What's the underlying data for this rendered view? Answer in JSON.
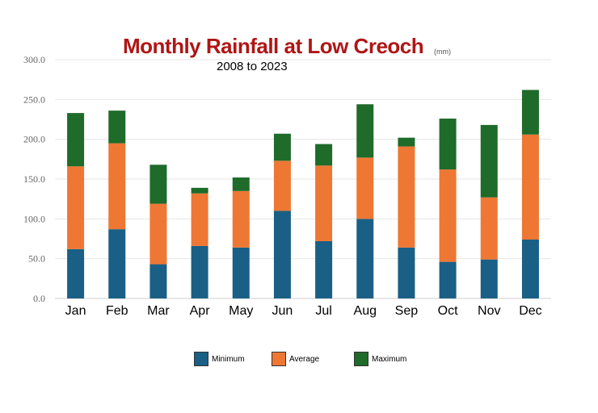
{
  "chart_data": {
    "type": "bar",
    "stacked": true,
    "title": "Monthly Rainfall at Low Creoch",
    "unit_label": "(mm)",
    "subtitle": "2008  to  2023",
    "categories": [
      "Jan",
      "Feb",
      "Mar",
      "Apr",
      "May",
      "Jun",
      "Jul",
      "Aug",
      "Sep",
      "Oct",
      "Nov",
      "Dec"
    ],
    "series": [
      {
        "name": "Minimum",
        "color": "#1a5f85",
        "values": [
          62,
          87,
          43,
          66,
          64,
          110,
          72,
          100,
          64,
          46,
          49,
          74
        ]
      },
      {
        "name": "Average",
        "color": "#ee7734",
        "values": [
          104,
          108,
          76,
          66,
          71,
          63,
          95,
          77,
          127,
          116,
          78,
          132
        ]
      },
      {
        "name": "Maximum",
        "color": "#1e6b2a",
        "values": [
          67,
          41,
          49,
          7,
          17,
          34,
          27,
          67,
          11,
          64,
          91,
          56
        ]
      }
    ],
    "ylim": [
      0,
      300
    ],
    "yticks": [
      "0.0",
      "50.0",
      "100.0",
      "150.0",
      "200.0",
      "250.0",
      "300.0"
    ],
    "grid": true,
    "legend_position": "bottom"
  }
}
